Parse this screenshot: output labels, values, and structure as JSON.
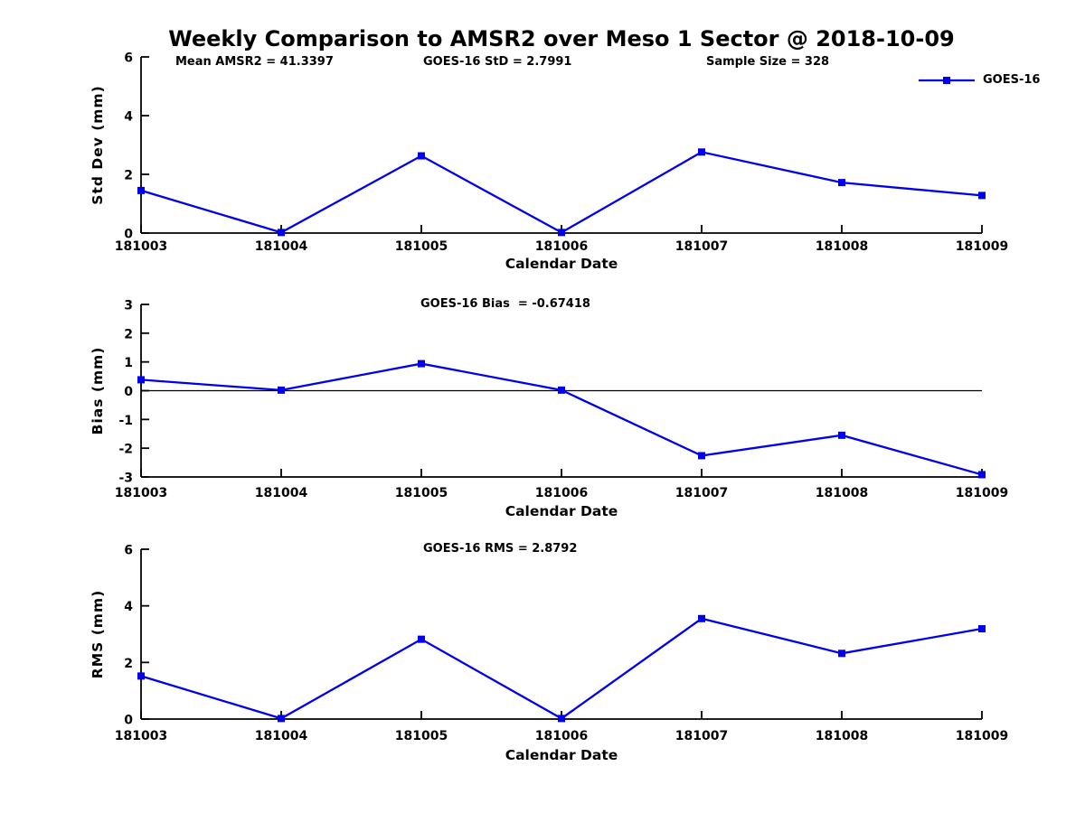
{
  "title": "Weekly Comparison to AMSR2 over Meso 1 Sector @ 2018-10-09",
  "legend": {
    "label": "GOES-16"
  },
  "colors": {
    "line": "#0000EE",
    "axis": "#000000",
    "text": "#000000",
    "background": "#FFFFFF"
  },
  "chart_data": [
    {
      "type": "line",
      "title": "",
      "ylabel": "Std Dev (mm)",
      "xlabel": "Calendar Date",
      "categories": [
        "181003",
        "181004",
        "181005",
        "181006",
        "181007",
        "181008",
        "181009"
      ],
      "series": [
        {
          "name": "GOES-16",
          "values": [
            1.45,
            0.02,
            2.63,
            0.02,
            2.76,
            1.72,
            1.28
          ]
        }
      ],
      "ylim": [
        0,
        6
      ],
      "yticks": [
        0,
        2,
        4,
        6
      ],
      "grid": false,
      "legend_position": "top-right",
      "annotations": [
        {
          "text": "Mean AMSR2 = 41.3397"
        },
        {
          "text": "GOES-16 StD = 2.7991"
        },
        {
          "text": "Sample Size = 328"
        }
      ]
    },
    {
      "type": "line",
      "title": "",
      "ylabel": "Bias (mm)",
      "xlabel": "Calendar Date",
      "categories": [
        "181003",
        "181004",
        "181005",
        "181006",
        "181007",
        "181008",
        "181009"
      ],
      "series": [
        {
          "name": "GOES-16",
          "values": [
            0.38,
            0.02,
            0.94,
            0.02,
            -2.26,
            -1.55,
            -2.92
          ]
        }
      ],
      "ylim": [
        -3,
        3
      ],
      "yticks": [
        -3,
        -2,
        -1,
        0,
        1,
        2,
        3
      ],
      "zero_line": true,
      "grid": false,
      "annotations": [
        {
          "text": "GOES-16 Bias  = -0.67418"
        }
      ]
    },
    {
      "type": "line",
      "title": "",
      "ylabel": "RMS (mm)",
      "xlabel": "Calendar Date",
      "categories": [
        "181003",
        "181004",
        "181005",
        "181006",
        "181007",
        "181008",
        "181009"
      ],
      "series": [
        {
          "name": "GOES-16",
          "values": [
            1.52,
            0.02,
            2.82,
            0.02,
            3.55,
            2.32,
            3.19
          ]
        }
      ],
      "ylim": [
        0,
        6
      ],
      "yticks": [
        0,
        2,
        4,
        6
      ],
      "grid": false,
      "annotations": [
        {
          "text": "GOES-16 RMS = 2.8792"
        }
      ]
    }
  ]
}
